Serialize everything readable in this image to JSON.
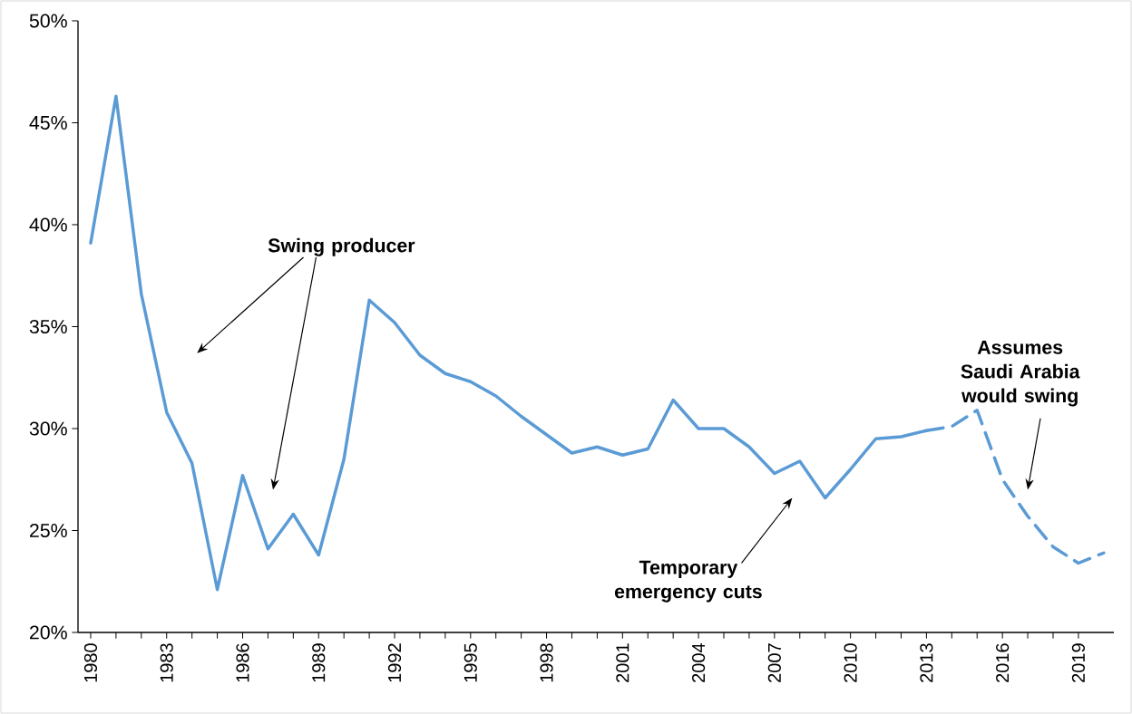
{
  "chart_data": {
    "type": "line",
    "x": [
      1980,
      1981,
      1982,
      1983,
      1984,
      1985,
      1986,
      1987,
      1988,
      1989,
      1990,
      1991,
      1992,
      1993,
      1994,
      1995,
      1996,
      1997,
      1998,
      1999,
      2000,
      2001,
      2002,
      2003,
      2004,
      2005,
      2006,
      2007,
      2008,
      2009,
      2010,
      2011,
      2012,
      2013,
      2014,
      2015,
      2016,
      2017,
      2018,
      2019,
      2020
    ],
    "series": [
      {
        "color": "#5b9bd5",
        "line_style": "solid",
        "values": [
          39.1,
          46.3,
          36.6,
          30.8,
          28.3,
          22.1,
          27.7,
          24.1,
          25.8,
          23.8,
          28.5,
          36.3,
          35.2,
          33.6,
          32.7,
          32.3,
          31.6,
          30.6,
          29.7,
          28.8,
          29.1,
          28.7,
          29.0,
          31.4,
          30.0,
          30.0,
          29.1,
          27.8,
          28.4,
          26.6,
          28.0,
          29.5,
          29.6,
          29.9,
          null,
          null,
          null,
          null,
          null,
          null,
          null
        ]
      },
      {
        "color": "#5b9bd5",
        "line_style": "dashed",
        "values": [
          null,
          null,
          null,
          null,
          null,
          null,
          null,
          null,
          null,
          null,
          null,
          null,
          null,
          null,
          null,
          null,
          null,
          null,
          null,
          null,
          null,
          null,
          null,
          null,
          null,
          null,
          null,
          null,
          null,
          null,
          null,
          null,
          null,
          29.9,
          30.1,
          30.9,
          27.5,
          25.7,
          24.2,
          23.4,
          23.9
        ]
      }
    ],
    "xlim": [
      1979.5,
      2020.4
    ],
    "xticks": [
      1980,
      1983,
      1986,
      1989,
      1992,
      1995,
      1998,
      2001,
      2004,
      2007,
      2010,
      2013,
      2016,
      2019
    ],
    "ylim": [
      20,
      50
    ],
    "yticks": [
      {
        "value": 20,
        "label": "20%"
      },
      {
        "value": 25,
        "label": "25%"
      },
      {
        "value": 30,
        "label": "30%"
      },
      {
        "value": 35,
        "label": "35%"
      },
      {
        "value": 40,
        "label": "40%"
      },
      {
        "value": 45,
        "label": "45%"
      },
      {
        "value": 50,
        "label": "50%"
      }
    ],
    "annotations": [
      "Swing producer",
      "Temporary emergency cuts",
      "Assumes Saudi Arabia would swing"
    ]
  }
}
